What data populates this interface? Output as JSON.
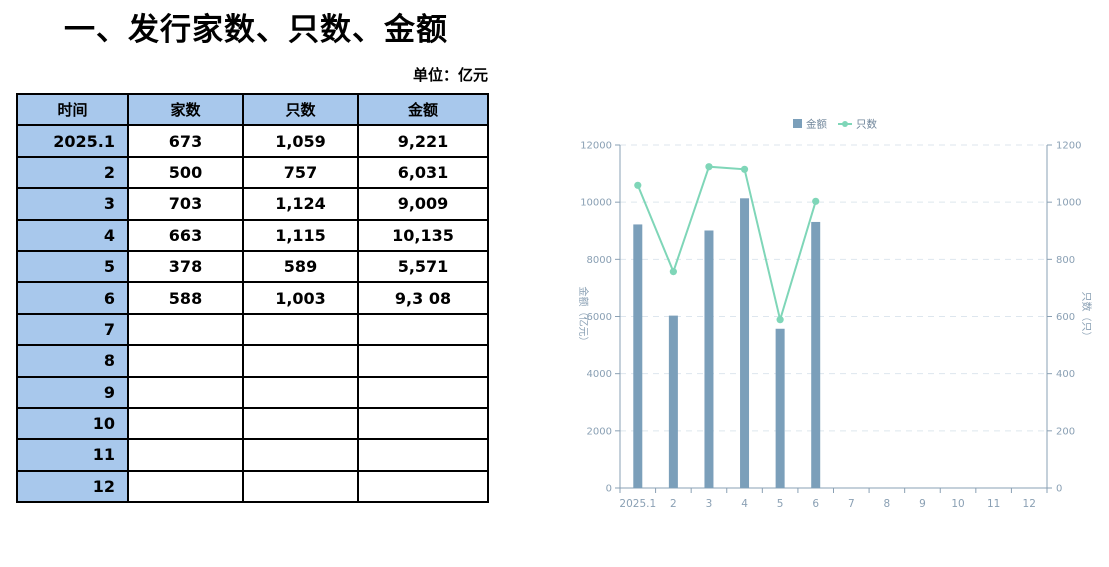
{
  "title": "一、发行家数、只数、金额",
  "unit_label": "单位：亿元",
  "table": {
    "headers": [
      "时间",
      "家数",
      "只数",
      "金额"
    ],
    "rows": [
      [
        "2025.1",
        "673",
        "1,059",
        "9,221"
      ],
      [
        "2",
        "500",
        "757",
        "6,031"
      ],
      [
        "3",
        "703",
        "1,124",
        "9,009"
      ],
      [
        "4",
        "663",
        "1,115",
        "10,135"
      ],
      [
        "5",
        "378",
        "589",
        "5,571"
      ],
      [
        "6",
        "588",
        "1,003",
        "9,3 08"
      ],
      [
        "7",
        "",
        "",
        ""
      ],
      [
        "8",
        "",
        "",
        ""
      ],
      [
        "9",
        "",
        "",
        ""
      ],
      [
        "10",
        "",
        "",
        ""
      ],
      [
        "11",
        "",
        "",
        ""
      ],
      [
        "12",
        "",
        "",
        ""
      ]
    ]
  },
  "chart_data": {
    "type": "bar+line",
    "categories": [
      "2025.1",
      "2",
      "3",
      "4",
      "5",
      "6",
      "7",
      "8",
      "9",
      "10",
      "11",
      "12"
    ],
    "series": [
      {
        "name": "金额",
        "type": "bar",
        "axis": "left",
        "values": [
          9221,
          6031,
          9009,
          10135,
          5571,
          9308,
          null,
          null,
          null,
          null,
          null,
          null
        ]
      },
      {
        "name": "只数",
        "type": "line",
        "axis": "right",
        "values": [
          1059,
          757,
          1124,
          1115,
          589,
          1003,
          null,
          null,
          null,
          null,
          null,
          null
        ]
      }
    ],
    "ylabel_left": "金额（亿元）",
    "ylabel_right": "只数（只）",
    "ylim_left": [
      0,
      12000
    ],
    "yticks_left": [
      0,
      2000,
      4000,
      6000,
      8000,
      10000,
      12000
    ],
    "ylim_right": [
      0,
      1200
    ],
    "yticks_right": [
      0,
      200,
      400,
      600,
      800,
      1000,
      1200
    ],
    "legend": [
      "金额",
      "只数"
    ],
    "legend_position": "top-center",
    "grid": true,
    "colors": {
      "bar": "#7b9fba",
      "line": "#7fd6b8",
      "axis": "#8aa0b4",
      "grid": "#dde6ee"
    }
  }
}
